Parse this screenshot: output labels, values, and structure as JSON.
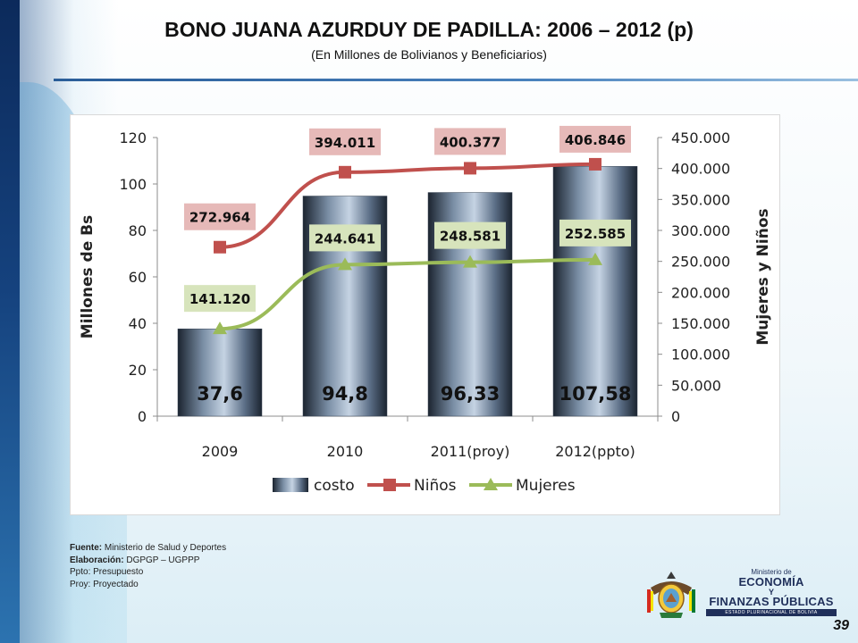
{
  "slide": {
    "title": "BONO JUANA  AZURDUY DE PADILLA: 2006 – 2012 (p)",
    "subtitle": "(En Millones de Bolivianos y Beneficiarios)",
    "page_number": "39"
  },
  "footer": {
    "source_label": "Fuente:",
    "source_value": " Ministerio de Salud y Deportes",
    "elab_label": "Elaboración:",
    "elab_value": " DGPGP – UGPPP",
    "note1": "Ppto: Presupuesto",
    "note2": "Proy: Proyectado"
  },
  "logo": {
    "line1": "Ministerio de",
    "line2": "ECONOMÍA",
    "line3": "Y",
    "line4": "FINANZAS PÚBLICAS",
    "line5": "ESTADO PLURINACIONAL DE BOLIVIA"
  },
  "colors": {
    "bar_dark": "#1b2430",
    "bar_light": "#c5d3e3",
    "ninos": "#c0504d",
    "mujeres": "#9bbb59",
    "ninos_label_bg": "#e6b9b8",
    "mujeres_label_bg": "#d7e4bc"
  },
  "chart_data": {
    "type": "bar",
    "categories": [
      "2009",
      "2010",
      "2011(proy)",
      "2012(ppto)"
    ],
    "ylabel": "Millones de Bs",
    "y2label": "Mujeres y Niños",
    "ylim": [
      0,
      120
    ],
    "y_ticks": [
      "0",
      "20",
      "40",
      "60",
      "80",
      "100",
      "120"
    ],
    "y2lim": [
      0,
      450000
    ],
    "y2_ticks": [
      "0",
      "50.000",
      "100.000",
      "150.000",
      "200.000",
      "250.000",
      "300.000",
      "350.000",
      "400.000",
      "450.000"
    ],
    "legend_position": "bottom",
    "series": [
      {
        "name": "costo",
        "kind": "bar",
        "axis": "left",
        "values": [
          37.6,
          94.8,
          96.33,
          107.58
        ],
        "labels": [
          "37,6",
          "94,8",
          "96,33",
          "107,58"
        ]
      },
      {
        "name": "Niños",
        "kind": "line",
        "axis": "right",
        "values": [
          272964,
          394011,
          400377,
          406846
        ],
        "labels": [
          "272.964",
          "394.011",
          "400.377",
          "406.846"
        ]
      },
      {
        "name": "Mujeres",
        "kind": "line",
        "axis": "right",
        "values": [
          141120,
          244641,
          248581,
          252585
        ],
        "labels": [
          "141.120",
          "244.641",
          "248.581",
          "252.585"
        ]
      }
    ]
  }
}
